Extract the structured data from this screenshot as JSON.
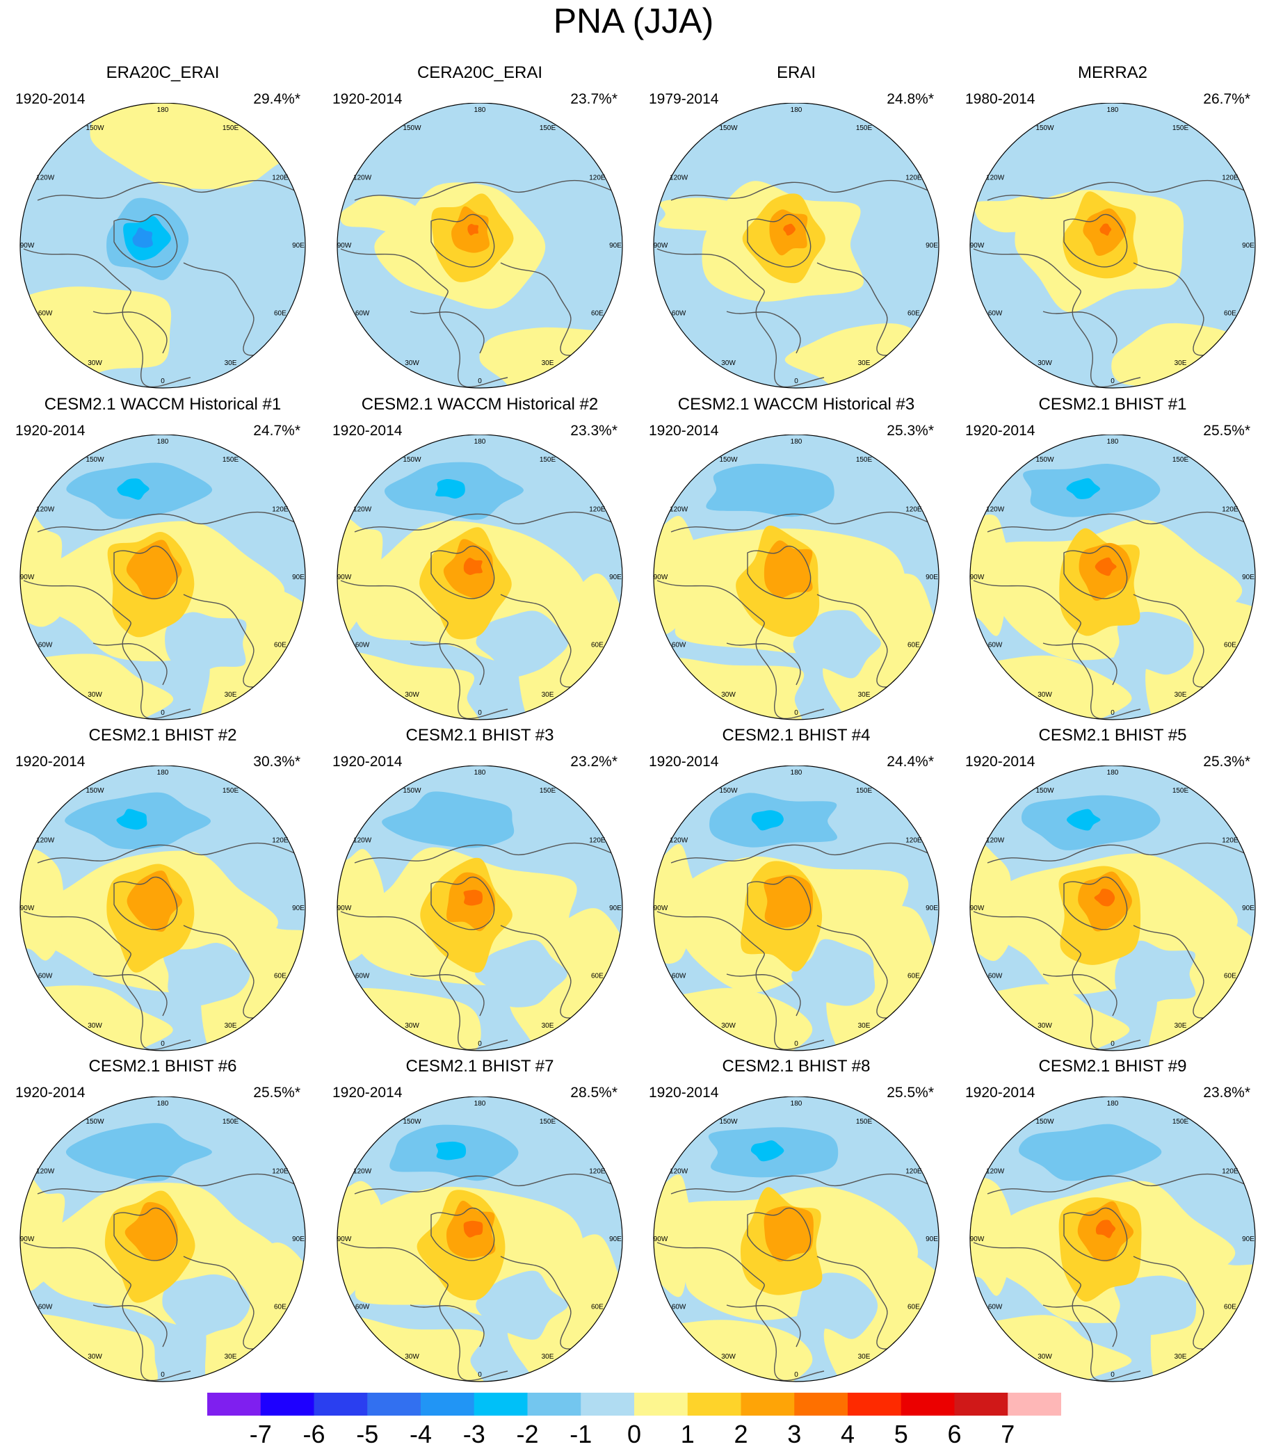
{
  "title": "PNA (JJA)",
  "chart_data": {
    "type": "polar-contour-map-grid",
    "title": "PNA (JJA)",
    "panels": [
      {
        "name": "ERA20C_ERAI",
        "years": "1920-2014",
        "variance": "29.4%*",
        "pattern": "neg-pole"
      },
      {
        "name": "CERA20C_ERAI",
        "years": "1920-2014",
        "variance": "23.7%*",
        "pattern": "pos-pole"
      },
      {
        "name": "ERAI",
        "years": "1979-2014",
        "variance": "24.8%*",
        "pattern": "pos-pole"
      },
      {
        "name": "MERRA2",
        "years": "1980-2014",
        "variance": "26.7%*",
        "pattern": "pos-pole"
      },
      {
        "name": "CESM2.1 WACCM Historical #1",
        "years": "1920-2014",
        "variance": "24.7%*",
        "pattern": "dipole"
      },
      {
        "name": "CESM2.1 WACCM Historical #2",
        "years": "1920-2014",
        "variance": "23.3%*",
        "pattern": "dipole"
      },
      {
        "name": "CESM2.1 WACCM Historical #3",
        "years": "1920-2014",
        "variance": "25.3%*",
        "pattern": "dipole"
      },
      {
        "name": "CESM2.1 BHIST #1",
        "years": "1920-2014",
        "variance": "25.5%*",
        "pattern": "dipole"
      },
      {
        "name": "CESM2.1 BHIST #2",
        "years": "1920-2014",
        "variance": "30.3%*",
        "pattern": "dipole"
      },
      {
        "name": "CESM2.1 BHIST #3",
        "years": "1920-2014",
        "variance": "23.2%*",
        "pattern": "dipole"
      },
      {
        "name": "CESM2.1 BHIST #4",
        "years": "1920-2014",
        "variance": "24.4%*",
        "pattern": "dipole"
      },
      {
        "name": "CESM2.1 BHIST #5",
        "years": "1920-2014",
        "variance": "25.3%*",
        "pattern": "dipole"
      },
      {
        "name": "CESM2.1 BHIST #6",
        "years": "1920-2014",
        "variance": "25.5%*",
        "pattern": "dipole"
      },
      {
        "name": "CESM2.1 BHIST #7",
        "years": "1920-2014",
        "variance": "28.5%*",
        "pattern": "dipole"
      },
      {
        "name": "CESM2.1 BHIST #8",
        "years": "1920-2014",
        "variance": "25.5%*",
        "pattern": "dipole"
      },
      {
        "name": "CESM2.1 BHIST #9",
        "years": "1920-2014",
        "variance": "23.8%*",
        "pattern": "dipole"
      }
    ],
    "lon_labels": [
      "180",
      "150E",
      "120E",
      "90E",
      "60E",
      "30E",
      "0",
      "30W",
      "60W",
      "90W",
      "120W",
      "150W"
    ],
    "colorbar": {
      "labels": [
        "-7",
        "-6",
        "-5",
        "-4",
        "-3",
        "-2",
        "-1",
        "0",
        "1",
        "2",
        "3",
        "4",
        "5",
        "6",
        "7"
      ],
      "colors": [
        "#7f1fef",
        "#1e00ff",
        "#2a3ff0",
        "#3270f0",
        "#2195f5",
        "#00c0f8",
        "#73c6ef",
        "#b0dcf2",
        "#fdf68f",
        "#fed32a",
        "#fea407",
        "#fe7000",
        "#fe2a00",
        "#eb0000",
        "#d01818",
        "#feb7b7"
      ]
    },
    "map_colors": {
      "neg1": "#b0dcf2",
      "neg2": "#73c6ef",
      "neg3": "#00c0f8",
      "neg4": "#2195f5",
      "pos1": "#fdf68f",
      "pos2": "#fed32a",
      "pos3": "#fea407",
      "pos4": "#fe7000",
      "coast": "#555555"
    }
  }
}
